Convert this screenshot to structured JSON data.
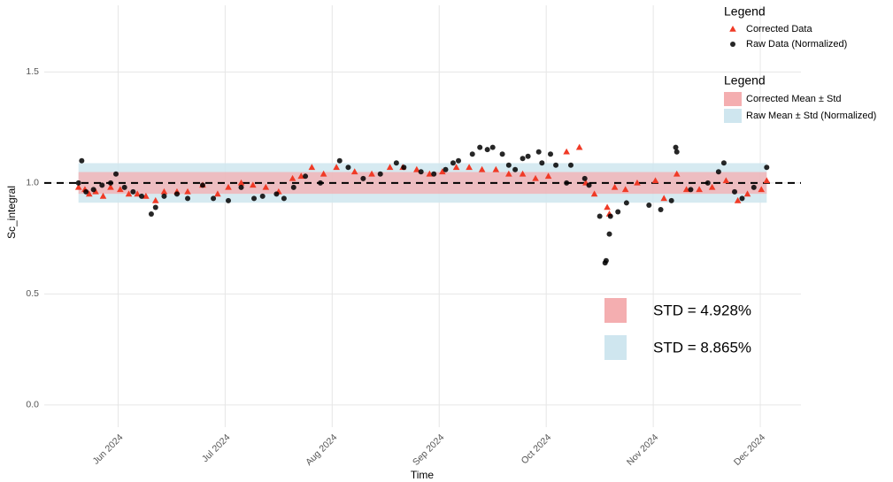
{
  "chart_data": {
    "type": "scatter",
    "xlabel": "Time",
    "ylabel": "Sc_integral",
    "xlim": [
      5.31,
      12.38
    ],
    "ylim": [
      -0.1,
      1.8
    ],
    "xticks": [
      {
        "value": 6,
        "label": "Jun 2024"
      },
      {
        "value": 7,
        "label": "Jul 2024"
      },
      {
        "value": 8,
        "label": "Aug 2024"
      },
      {
        "value": 9,
        "label": "Sep 2024"
      },
      {
        "value": 10,
        "label": "Oct 2024"
      },
      {
        "value": 11,
        "label": "Nov 2024"
      },
      {
        "value": 12,
        "label": "Dec 2024"
      }
    ],
    "yticks": [
      {
        "value": 0,
        "label": "0.0"
      },
      {
        "value": 0.5,
        "label": "0.5"
      },
      {
        "value": 1,
        "label": "1.0"
      },
      {
        "value": 1.5,
        "label": "1.5"
      }
    ],
    "grid": true,
    "hline": 1,
    "legend": "top-right",
    "legend_title": "Legend",
    "series": [
      {
        "name": "Corrected Data",
        "color": "#f03a26",
        "marker": "triangle",
        "x": [
          5.63,
          5.69,
          5.73,
          5.79,
          5.86,
          5.93,
          6.02,
          6.1,
          6.18,
          6.26,
          6.35,
          6.43,
          6.55,
          6.65,
          6.79,
          6.93,
          7.03,
          7.15,
          7.26,
          7.38,
          7.5,
          7.63,
          7.71,
          7.81,
          7.92,
          8.04,
          8.21,
          8.37,
          8.54,
          8.66,
          8.79,
          8.91,
          9.03,
          9.16,
          9.28,
          9.4,
          9.53,
          9.65,
          9.78,
          9.9,
          10.02,
          10.19,
          10.31,
          10.37,
          10.45,
          10.57,
          10.59,
          10.64,
          10.74,
          10.85,
          11.02,
          11.1,
          11.22,
          11.31,
          11.43,
          11.55,
          11.68,
          11.79,
          11.88,
          12.01,
          12.06
        ],
        "values": [
          0.98,
          0.97,
          0.95,
          0.96,
          0.94,
          0.98,
          0.97,
          0.95,
          0.95,
          0.94,
          0.92,
          0.96,
          0.96,
          0.96,
          0.99,
          0.95,
          0.98,
          1.0,
          0.99,
          0.98,
          0.96,
          1.02,
          1.03,
          1.07,
          1.04,
          1.07,
          1.05,
          1.04,
          1.07,
          1.07,
          1.06,
          1.04,
          1.05,
          1.07,
          1.07,
          1.06,
          1.06,
          1.04,
          1.04,
          1.02,
          1.03,
          1.14,
          1.16,
          1.0,
          0.95,
          0.89,
          0.86,
          0.98,
          0.97,
          1.0,
          1.01,
          0.93,
          1.04,
          0.97,
          0.97,
          0.98,
          1.01,
          0.92,
          0.95,
          0.97,
          1.01
        ]
      },
      {
        "name": "Raw Data (Normalized)",
        "color": "#000000",
        "marker": "circle",
        "x": [
          5.63,
          5.66,
          5.7,
          5.77,
          5.85,
          5.93,
          5.98,
          6.06,
          6.14,
          6.22,
          6.31,
          6.35,
          6.43,
          6.55,
          6.65,
          6.79,
          6.89,
          7.03,
          7.15,
          7.27,
          7.35,
          7.48,
          7.55,
          7.64,
          7.75,
          7.89,
          8.07,
          8.15,
          8.29,
          8.45,
          8.6,
          8.67,
          8.83,
          8.95,
          9.06,
          9.13,
          9.18,
          9.31,
          9.38,
          9.45,
          9.5,
          9.59,
          9.65,
          9.71,
          9.78,
          9.83,
          9.93,
          9.96,
          10.04,
          10.09,
          10.19,
          10.23,
          10.36,
          10.4,
          10.5,
          10.55,
          10.56,
          10.59,
          10.6,
          10.67,
          10.75,
          10.96,
          11.07,
          11.17,
          11.21,
          11.22,
          11.35,
          11.51,
          11.61,
          11.66,
          11.76,
          11.83,
          11.94,
          12.06
        ],
        "values": [
          1.0,
          1.1,
          0.96,
          0.97,
          0.99,
          1.0,
          1.04,
          0.98,
          0.96,
          0.94,
          0.86,
          0.89,
          0.94,
          0.95,
          0.93,
          0.99,
          0.93,
          0.92,
          0.98,
          0.93,
          0.94,
          0.95,
          0.93,
          0.98,
          1.03,
          1.0,
          1.1,
          1.07,
          1.02,
          1.04,
          1.09,
          1.07,
          1.05,
          1.04,
          1.06,
          1.09,
          1.1,
          1.13,
          1.16,
          1.15,
          1.16,
          1.13,
          1.08,
          1.06,
          1.11,
          1.12,
          1.14,
          1.09,
          1.13,
          1.08,
          1.0,
          1.08,
          1.02,
          0.99,
          0.85,
          0.64,
          0.65,
          0.77,
          0.85,
          0.87,
          0.91,
          0.9,
          0.88,
          0.92,
          1.16,
          1.14,
          0.97,
          1.0,
          1.05,
          1.09,
          0.96,
          0.93,
          0.98,
          1.07
        ]
      }
    ],
    "bands": {
      "title": "Legend",
      "items": [
        {
          "name": "Corrected Mean ± Std",
          "color": "#f4aeb0",
          "low": 0.951,
          "high": 1.049,
          "annotation": "STD = 4.928%"
        },
        {
          "name": "Raw Mean ± Std (Normalized)",
          "color": "#cfe6ef",
          "low": 0.911,
          "high": 1.089,
          "annotation": "STD = 8.865%"
        }
      ]
    }
  }
}
